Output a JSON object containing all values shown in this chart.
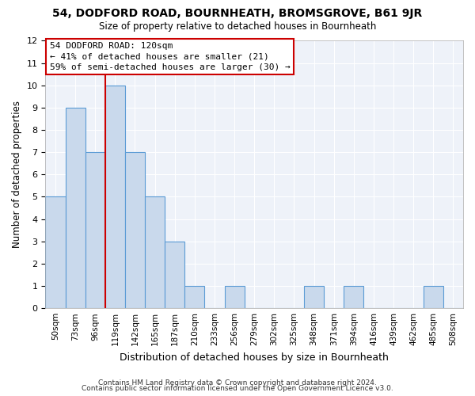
{
  "title": "54, DODFORD ROAD, BOURNHEATH, BROMSGROVE, B61 9JR",
  "subtitle": "Size of property relative to detached houses in Bournheath",
  "xlabel": "Distribution of detached houses by size in Bournheath",
  "ylabel": "Number of detached properties",
  "bin_labels": [
    "50sqm",
    "73sqm",
    "96sqm",
    "119sqm",
    "142sqm",
    "165sqm",
    "187sqm",
    "210sqm",
    "233sqm",
    "256sqm",
    "279sqm",
    "302sqm",
    "325sqm",
    "348sqm",
    "371sqm",
    "394sqm",
    "416sqm",
    "439sqm",
    "462sqm",
    "485sqm",
    "508sqm"
  ],
  "counts": [
    5,
    9,
    7,
    10,
    7,
    5,
    3,
    1,
    0,
    1,
    0,
    0,
    0,
    1,
    0,
    1,
    0,
    0,
    0,
    1,
    0
  ],
  "bar_color": "#c9d9ec",
  "bar_edge_color": "#5b9bd5",
  "bar_linewidth": 0.8,
  "red_line_bin_index": 3,
  "annotation_title": "54 DODFORD ROAD: 120sqm",
  "annotation_line1": "← 41% of detached houses are smaller (21)",
  "annotation_line2": "59% of semi-detached houses are larger (30) →",
  "annotation_box_color": "#ffffff",
  "annotation_box_edgecolor": "#cc0000",
  "red_line_color": "#cc0000",
  "background_color": "#eef2f9",
  "grid_color": "#ffffff",
  "ylim": [
    0,
    12
  ],
  "yticks": [
    0,
    1,
    2,
    3,
    4,
    5,
    6,
    7,
    8,
    9,
    10,
    11,
    12
  ],
  "footer1": "Contains HM Land Registry data © Crown copyright and database right 2024.",
  "footer2": "Contains public sector information licensed under the Open Government Licence v3.0."
}
